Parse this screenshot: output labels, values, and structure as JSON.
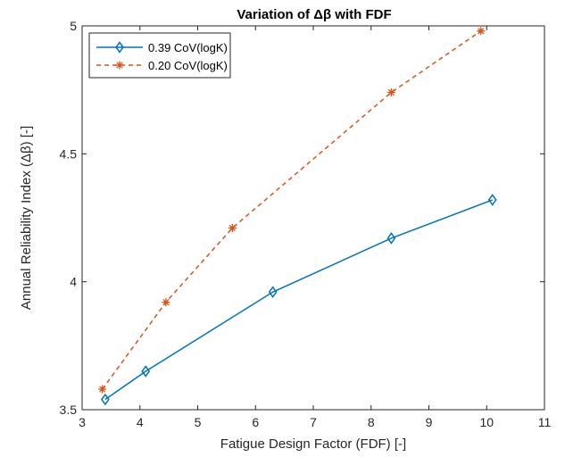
{
  "chart_data": {
    "type": "line",
    "title": "Variation of Δβ with FDF",
    "xlabel": "Fatigue Design Factor (FDF) [-]",
    "ylabel": "Annual Reliability Index (Δβ) [-]",
    "xlim": [
      3,
      11
    ],
    "ylim": [
      3.5,
      5
    ],
    "xticks": [
      3,
      4,
      5,
      6,
      7,
      8,
      9,
      10,
      11
    ],
    "yticks": [
      3.5,
      4,
      4.5,
      5
    ],
    "grid": false,
    "legend_position": "top-left",
    "series": [
      {
        "name": "0.39 CoV(logK)",
        "color": "#0072BD",
        "line_style": "solid",
        "marker": "diamond",
        "x": [
          3.4,
          4.1,
          6.3,
          8.35,
          10.1
        ],
        "y": [
          3.54,
          3.65,
          3.96,
          4.17,
          4.32
        ]
      },
      {
        "name": "0.20 CoV(logK)",
        "color": "#D95319",
        "line_style": "dashed",
        "marker": "asterisk",
        "x": [
          3.35,
          4.45,
          5.6,
          8.35,
          9.9
        ],
        "y": [
          3.58,
          3.92,
          4.21,
          4.74,
          4.98
        ]
      }
    ]
  }
}
